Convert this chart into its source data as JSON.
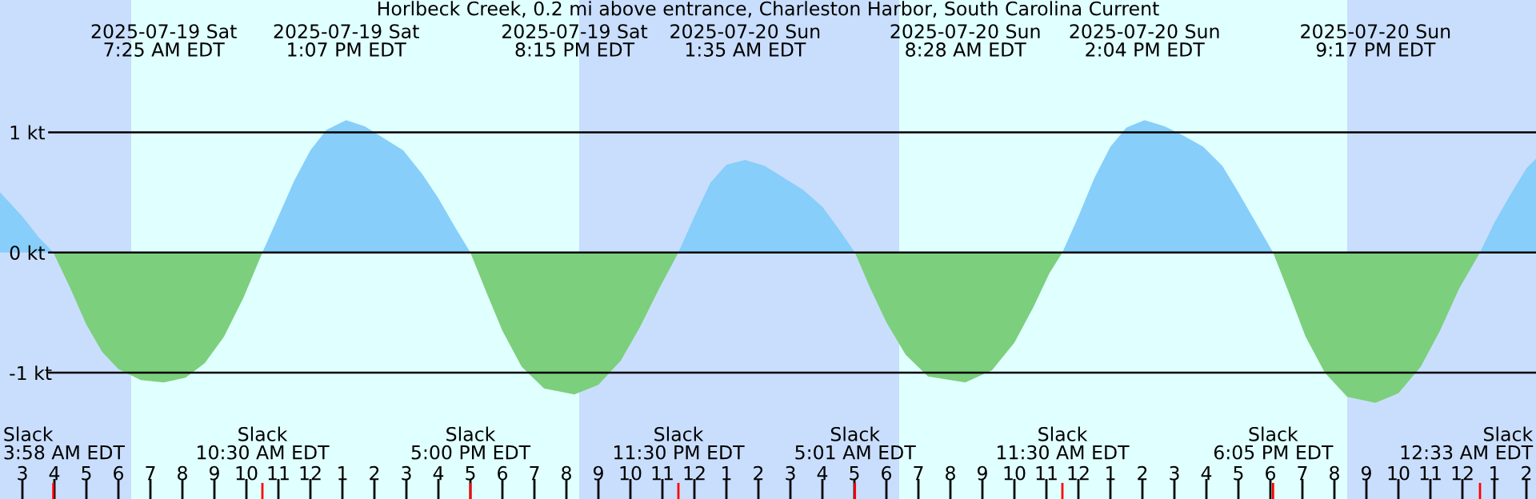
{
  "chart_data": {
    "type": "area",
    "title": "Horlbeck Creek, 0.2 mi above entrance, Charleston Harbor, South Carolina Current",
    "series": [
      {
        "color": "#87cefa",
        "x": [
          "2025-07-19T02:18",
          "2025-07-19T03:00",
          "2025-07-19T03:30",
          "2025-07-19T03:58",
          "2025-07-19T07:00",
          "2025-07-19T10:30",
          "2025-07-19T11:00",
          "2025-07-19T11:30",
          "2025-07-19T12:00",
          "2025-07-19T12:30",
          "2025-07-19T13:07",
          "2025-07-19T13:42",
          "2025-07-19T14:18",
          "2025-07-19T14:54",
          "2025-07-19T15:30",
          "2025-07-19T16:00",
          "2025-07-19T16:30",
          "2025-07-19T17:00",
          "2025-07-19T20:00",
          "2025-07-19T23:30",
          "2025-07-20T00:00",
          "2025-07-20T00:30",
          "2025-07-20T01:00",
          "2025-07-20T01:35",
          "2025-07-20T02:12",
          "2025-07-20T02:48",
          "2025-07-20T03:24",
          "2025-07-20T04:00",
          "2025-07-20T04:30",
          "2025-07-20T05:01",
          "2025-07-20T08:00",
          "2025-07-20T11:30",
          "2025-07-20T12:00",
          "2025-07-20T12:30",
          "2025-07-20T13:00",
          "2025-07-20T13:30",
          "2025-07-20T14:04",
          "2025-07-20T14:42",
          "2025-07-20T15:18",
          "2025-07-20T15:54",
          "2025-07-20T16:30",
          "2025-07-20T17:00",
          "2025-07-20T17:30",
          "2025-07-20T18:05",
          "2025-07-20T21:00",
          "2025-07-21T00:33",
          "2025-07-21T01:00",
          "2025-07-21T01:30",
          "2025-07-21T02:00",
          "2025-07-21T02:18"
        ],
        "values": [
          0.5,
          0.3,
          0.13,
          0,
          null,
          0,
          0.3,
          0.6,
          0.85,
          1.02,
          1.1,
          1.05,
          0.95,
          0.85,
          0.65,
          0.45,
          0.22,
          0,
          null,
          0,
          0.3,
          0.58,
          0.73,
          0.77,
          0.72,
          0.62,
          0.52,
          0.38,
          0.2,
          0,
          null,
          0,
          0.3,
          0.62,
          0.88,
          1.04,
          1.1,
          1.05,
          0.97,
          0.88,
          0.72,
          0.5,
          0.27,
          0,
          null,
          0,
          0.25,
          0.48,
          0.7,
          0.78
        ]
      },
      {
        "color": "#7ccf7c",
        "x": [
          "2025-07-19T03:58",
          "2025-07-19T04:30",
          "2025-07-19T05:00",
          "2025-07-19T05:30",
          "2025-07-19T06:00",
          "2025-07-19T06:42",
          "2025-07-19T07:25",
          "2025-07-19T08:06",
          "2025-07-19T08:42",
          "2025-07-19T09:18",
          "2025-07-19T09:54",
          "2025-07-19T10:30",
          "2025-07-19T14:00",
          "2025-07-19T17:00",
          "2025-07-19T17:30",
          "2025-07-19T18:00",
          "2025-07-19T18:36",
          "2025-07-19T19:18",
          "2025-07-19T20:15",
          "2025-07-19T21:00",
          "2025-07-19T21:42",
          "2025-07-19T22:18",
          "2025-07-19T22:54",
          "2025-07-19T23:30",
          "2025-07-20T02:00",
          "2025-07-20T05:01",
          "2025-07-20T05:30",
          "2025-07-20T06:00",
          "2025-07-20T06:36",
          "2025-07-20T07:18",
          "2025-07-20T08:28",
          "2025-07-20T09:18",
          "2025-07-20T10:00",
          "2025-07-20T10:36",
          "2025-07-20T11:06",
          "2025-07-20T11:30",
          "2025-07-20T15:00",
          "2025-07-20T18:05",
          "2025-07-20T18:36",
          "2025-07-20T19:06",
          "2025-07-20T19:42",
          "2025-07-20T20:24",
          "2025-07-20T21:17",
          "2025-07-20T22:00",
          "2025-07-20T22:42",
          "2025-07-20T23:18",
          "2025-07-20T23:54",
          "2025-07-21T00:33"
        ],
        "values": [
          0,
          -0.3,
          -0.6,
          -0.83,
          -0.97,
          -1.06,
          -1.08,
          -1.04,
          -0.92,
          -0.7,
          -0.38,
          0,
          null,
          0,
          -0.33,
          -0.65,
          -0.95,
          -1.13,
          -1.18,
          -1.1,
          -0.9,
          -0.62,
          -0.3,
          0,
          null,
          0,
          -0.3,
          -0.58,
          -0.85,
          -1.03,
          -1.08,
          -0.98,
          -0.75,
          -0.45,
          -0.17,
          0,
          null,
          0,
          -0.35,
          -0.7,
          -1.0,
          -1.2,
          -1.25,
          -1.17,
          -0.95,
          -0.65,
          -0.3,
          0
        ]
      }
    ],
    "xlim": [
      "2025-07-19T02:18",
      "2025-07-21T02:18"
    ],
    "xticks": [
      {
        "value": "2025-07-19T03:00",
        "label": "3"
      },
      {
        "value": "2025-07-19T04:00",
        "label": "4"
      },
      {
        "value": "2025-07-19T05:00",
        "label": "5"
      },
      {
        "value": "2025-07-19T06:00",
        "label": "6"
      },
      {
        "value": "2025-07-19T07:00",
        "label": "7"
      },
      {
        "value": "2025-07-19T08:00",
        "label": "8"
      },
      {
        "value": "2025-07-19T09:00",
        "label": "9"
      },
      {
        "value": "2025-07-19T10:00",
        "label": "10"
      },
      {
        "value": "2025-07-19T11:00",
        "label": "11"
      },
      {
        "value": "2025-07-19T12:00",
        "label": "12"
      },
      {
        "value": "2025-07-19T13:00",
        "label": "1"
      },
      {
        "value": "2025-07-19T14:00",
        "label": "2"
      },
      {
        "value": "2025-07-19T15:00",
        "label": "3"
      },
      {
        "value": "2025-07-19T16:00",
        "label": "4"
      },
      {
        "value": "2025-07-19T17:00",
        "label": "5"
      },
      {
        "value": "2025-07-19T18:00",
        "label": "6"
      },
      {
        "value": "2025-07-19T19:00",
        "label": "7"
      },
      {
        "value": "2025-07-19T20:00",
        "label": "8"
      },
      {
        "value": "2025-07-19T21:00",
        "label": "9"
      },
      {
        "value": "2025-07-19T22:00",
        "label": "10"
      },
      {
        "value": "2025-07-19T23:00",
        "label": "11"
      },
      {
        "value": "2025-07-20T00:00",
        "label": "12"
      },
      {
        "value": "2025-07-20T01:00",
        "label": "1"
      },
      {
        "value": "2025-07-20T02:00",
        "label": "2"
      },
      {
        "value": "2025-07-20T03:00",
        "label": "3"
      },
      {
        "value": "2025-07-20T04:00",
        "label": "4"
      },
      {
        "value": "2025-07-20T05:00",
        "label": "5"
      },
      {
        "value": "2025-07-20T06:00",
        "label": "6"
      },
      {
        "value": "2025-07-20T07:00",
        "label": "7"
      },
      {
        "value": "2025-07-20T08:00",
        "label": "8"
      },
      {
        "value": "2025-07-20T09:00",
        "label": "9"
      },
      {
        "value": "2025-07-20T10:00",
        "label": "10"
      },
      {
        "value": "2025-07-20T11:00",
        "label": "11"
      },
      {
        "value": "2025-07-20T12:00",
        "label": "12"
      },
      {
        "value": "2025-07-20T13:00",
        "label": "1"
      },
      {
        "value": "2025-07-20T14:00",
        "label": "2"
      },
      {
        "value": "2025-07-20T15:00",
        "label": "3"
      },
      {
        "value": "2025-07-20T16:00",
        "label": "4"
      },
      {
        "value": "2025-07-20T17:00",
        "label": "5"
      },
      {
        "value": "2025-07-20T18:00",
        "label": "6"
      },
      {
        "value": "2025-07-20T19:00",
        "label": "7"
      },
      {
        "value": "2025-07-20T20:00",
        "label": "8"
      },
      {
        "value": "2025-07-20T21:00",
        "label": "9"
      },
      {
        "value": "2025-07-20T22:00",
        "label": "10"
      },
      {
        "value": "2025-07-20T23:00",
        "label": "11"
      },
      {
        "value": "2025-07-21T00:00",
        "label": "12"
      },
      {
        "value": "2025-07-21T01:00",
        "label": "1"
      },
      {
        "value": "2025-07-21T02:00",
        "label": "2"
      }
    ],
    "ylim": [
      -2.05,
      2.1
    ],
    "yticks": [
      {
        "value": 1,
        "label": "1 kt"
      },
      {
        "value": 0,
        "label": "0 kt"
      },
      {
        "value": -1,
        "label": "-1 kt"
      }
    ],
    "grid": "y",
    "bands": [
      {
        "axis": "x",
        "from": "2025-07-19T02:18",
        "to": "2025-07-19T06:24",
        "color": "#c9defc"
      },
      {
        "axis": "x",
        "from": "2025-07-19T20:24",
        "to": "2025-07-20T06:24",
        "color": "#c9defc"
      },
      {
        "axis": "x",
        "from": "2025-07-20T20:24",
        "to": "2025-07-21T02:18",
        "color": "#c9defc"
      }
    ],
    "annotations": [
      "2025-07-19 Sat\n7:25 AM EDT",
      "2025-07-19 Sat\n1:07 PM EDT",
      "2025-07-19 Sat\n8:15 PM EDT",
      "2025-07-20 Sun\n1:35 AM EDT",
      "2025-07-20 Sun\n8:28 AM EDT",
      "2025-07-20 Sun\n2:04 PM EDT",
      "2025-07-20 Sun\n9:17 PM EDT",
      "Slack\n3:58 AM EDT",
      "Slack\n10:30 AM EDT",
      "Slack\n5:00 PM EDT",
      "Slack\n11:30 PM EDT",
      "Slack\n5:01 AM EDT",
      "Slack\n11:30 AM EDT",
      "Slack\n6:05 PM EDT",
      "Slack\n12:33 AM EDT"
    ]
  }
}
